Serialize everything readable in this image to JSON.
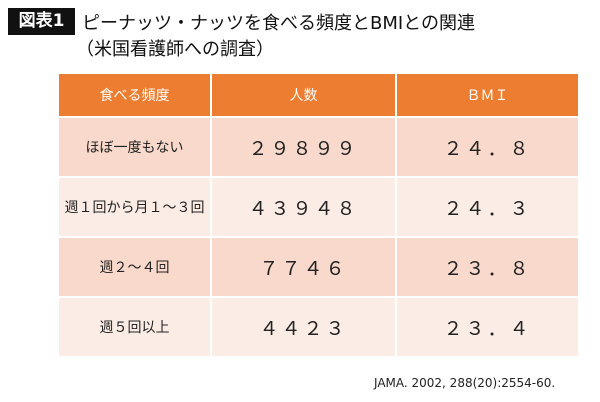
{
  "header": {
    "label": "図表1",
    "title": "ピーナッツ・ナッツを食べる頻度とBMIとの関連",
    "subtitle": "（米国看護師への調査）"
  },
  "table": {
    "columns": [
      "食べる頻度",
      "人数",
      "ＢＭＩ"
    ],
    "rows": [
      [
        "ほぼ一度もない",
        "２９８９９",
        "２４．８"
      ],
      [
        "週１回から月１～３回",
        "４３９４８",
        "２４．３"
      ],
      [
        "週２～４回",
        "７７４６",
        "２３．８"
      ],
      [
        "週５回以上",
        "４４２３",
        "２３．４"
      ]
    ]
  },
  "source": "JAMA. 2002, 288(20):2554-60."
}
